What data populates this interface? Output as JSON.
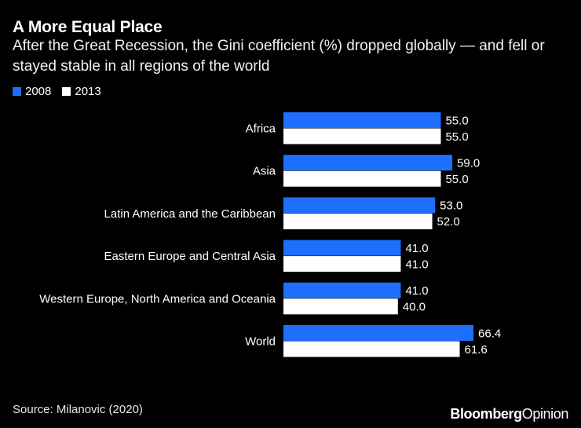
{
  "header": {
    "title": "A More Equal Place",
    "subtitle": "After the Great Recession, the Gini coefficient (%) dropped globally — and fell or stayed stable in all regions of the world"
  },
  "footer": {
    "source": "Source: Milanovic (2020)",
    "brand_part1": "Bloomberg",
    "brand_part2": "Opinion"
  },
  "colors": {
    "series_2008": "#1f6fff",
    "series_2013": "#ffffff",
    "background": "#000000"
  },
  "chart_data": {
    "type": "bar",
    "orientation": "horizontal",
    "title": "A More Equal Place",
    "xlabel": "",
    "ylabel": "",
    "xlim": [
      0,
      70
    ],
    "grid": false,
    "legend_position": "top-left",
    "categories": [
      "Africa",
      "Asia",
      "Latin America and the Caribbean",
      "Eastern Europe and Central Asia",
      "Western Europe, North America and Oceania",
      "World"
    ],
    "series": [
      {
        "name": "2008",
        "values": [
          55.0,
          59.0,
          53.0,
          41.0,
          41.0,
          66.4
        ],
        "labels": [
          "55.0",
          "59.0",
          "53.0",
          "41.0",
          "41.0",
          "66.4"
        ]
      },
      {
        "name": "2013",
        "values": [
          55.0,
          55.0,
          52.0,
          41.0,
          40.0,
          61.6
        ],
        "labels": [
          "55.0",
          "55.0",
          "52.0",
          "41.0",
          "40.0",
          "61.6"
        ]
      }
    ]
  }
}
